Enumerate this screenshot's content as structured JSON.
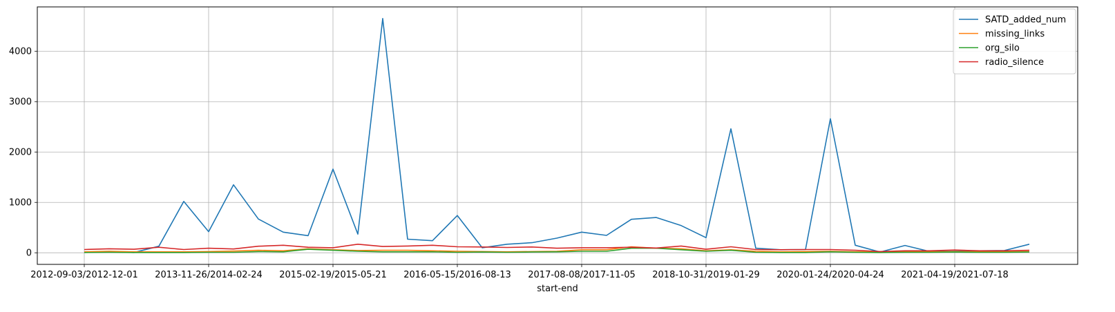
{
  "chart_data": {
    "type": "line",
    "xlabel": "start-end",
    "ylabel": "",
    "ylim": [
      -230,
      4880
    ],
    "yticks": [
      0,
      1000,
      2000,
      3000,
      4000
    ],
    "grid": true,
    "legend_position": "top-right",
    "x_tick_labels": [
      "2012-09-03/2012-12-01",
      "2013-11-26/2014-02-24",
      "2015-02-19/2015-05-21",
      "2016-05-15/2016-08-13",
      "2017-08-08/2017-11-05",
      "2018-10-31/2019-01-29",
      "2020-01-24/2020-04-24",
      "2021-04-19/2021-07-18"
    ],
    "x_tick_index": [
      0,
      5,
      10,
      15,
      20,
      25,
      30,
      35
    ],
    "n_points": 39,
    "series": [
      {
        "name": "SATD_added_num",
        "color": "#1f77b4",
        "values": [
          10,
          20,
          5,
          130,
          1020,
          420,
          1350,
          670,
          410,
          340,
          1660,
          370,
          4650,
          270,
          240,
          740,
          100,
          170,
          200,
          290,
          410,
          345,
          665,
          700,
          540,
          300,
          2460,
          90,
          60,
          65,
          2660,
          150,
          15,
          145,
          25,
          30,
          40,
          45,
          170
        ]
      },
      {
        "name": "missing_links",
        "color": "#ff7f0e",
        "values": [
          20,
          30,
          20,
          20,
          20,
          25,
          35,
          50,
          40,
          80,
          60,
          45,
          50,
          50,
          40,
          30,
          25,
          20,
          25,
          30,
          60,
          60,
          120,
          90,
          80,
          40,
          60,
          30,
          20,
          25,
          30,
          20,
          15,
          20,
          20,
          25,
          20,
          20,
          25
        ]
      },
      {
        "name": "org_silo",
        "color": "#2ca02c",
        "values": [
          5,
          10,
          5,
          5,
          5,
          10,
          10,
          25,
          20,
          70,
          50,
          30,
          20,
          20,
          20,
          10,
          15,
          10,
          15,
          20,
          30,
          30,
          90,
          90,
          60,
          30,
          50,
          10,
          5,
          5,
          20,
          10,
          5,
          10,
          10,
          15,
          10,
          10,
          15
        ]
      },
      {
        "name": "radio_silence",
        "color": "#d62728",
        "values": [
          65,
          80,
          70,
          110,
          65,
          90,
          75,
          130,
          150,
          110,
          100,
          170,
          125,
          135,
          150,
          120,
          115,
          105,
          115,
          90,
          100,
          100,
          110,
          95,
          135,
          70,
          120,
          65,
          60,
          65,
          65,
          50,
          25,
          40,
          40,
          55,
          40,
          40,
          50
        ]
      }
    ]
  }
}
